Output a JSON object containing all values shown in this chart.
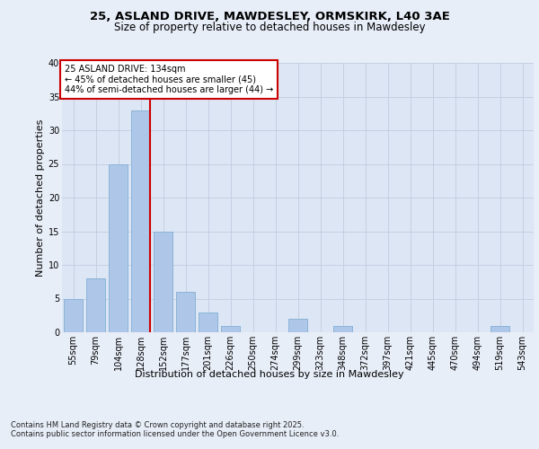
{
  "title_line1": "25, ASLAND DRIVE, MAWDESLEY, ORMSKIRK, L40 3AE",
  "title_line2": "Size of property relative to detached houses in Mawdesley",
  "categories": [
    "55sqm",
    "79sqm",
    "104sqm",
    "128sqm",
    "152sqm",
    "177sqm",
    "201sqm",
    "226sqm",
    "250sqm",
    "274sqm",
    "299sqm",
    "323sqm",
    "348sqm",
    "372sqm",
    "397sqm",
    "421sqm",
    "445sqm",
    "470sqm",
    "494sqm",
    "519sqm",
    "543sqm"
  ],
  "values": [
    5,
    8,
    25,
    33,
    15,
    6,
    3,
    1,
    0,
    0,
    2,
    0,
    1,
    0,
    0,
    0,
    0,
    0,
    0,
    1,
    0
  ],
  "bar_color": "#aec6e8",
  "bar_edgecolor": "#8ab4d8",
  "fig_background": "#e8eef8",
  "axes_background": "#dde6f5",
  "ylabel": "Number of detached properties",
  "xlabel": "Distribution of detached houses by size in Mawdesley",
  "ylim": [
    0,
    40
  ],
  "yticks": [
    0,
    5,
    10,
    15,
    20,
    25,
    30,
    35,
    40
  ],
  "vline_color": "#cc0000",
  "annotation_title": "25 ASLAND DRIVE: 134sqm",
  "annotation_line1": "← 45% of detached houses are smaller (45)",
  "annotation_line2": "44% of semi-detached houses are larger (44) →",
  "annotation_box_facecolor": "#ffffff",
  "annotation_box_edgecolor": "#cc0000",
  "footer_line1": "Contains HM Land Registry data © Crown copyright and database right 2025.",
  "footer_line2": "Contains public sector information licensed under the Open Government Licence v3.0.",
  "grid_color": "#c0cce0",
  "title_fontsize": 9.5,
  "subtitle_fontsize": 8.5,
  "tick_fontsize": 7,
  "ylabel_fontsize": 8,
  "xlabel_fontsize": 8,
  "annotation_fontsize": 7,
  "footer_fontsize": 6
}
